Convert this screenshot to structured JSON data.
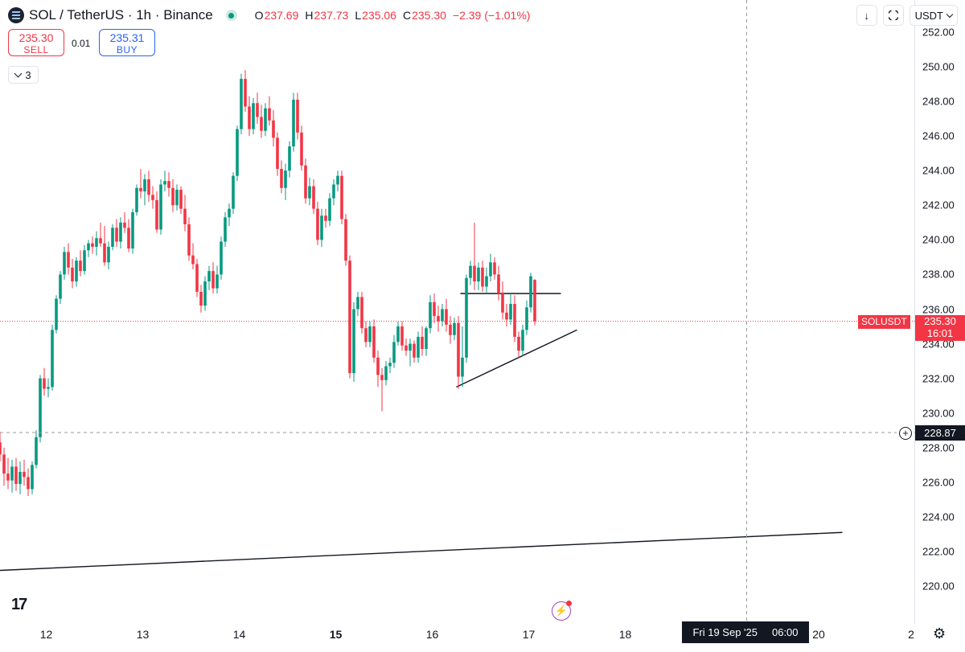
{
  "header": {
    "symbol_title": "SOL / TetherUS · 1h · Binance",
    "ohlc": [
      {
        "key": "O",
        "value": "237.69"
      },
      {
        "key": "H",
        "value": "237.73"
      },
      {
        "key": "L",
        "value": "235.06"
      },
      {
        "key": "C",
        "value": "235.30"
      }
    ],
    "change": "−2.39 (−1.01%)"
  },
  "trade": {
    "sell_price": "235.30",
    "sell_label": "SELL",
    "spread": "0.01",
    "buy_price": "235.31",
    "buy_label": "BUY"
  },
  "indicators_count": "3",
  "top_right": {
    "download_icon": "↓",
    "currency": "USDT"
  },
  "symbol_label": "SOLUSDT",
  "last_price": "235.30",
  "countdown": "16:01",
  "crosshair_price": "228.87",
  "crosshair_time": {
    "date": "Fri 19 Sep '25",
    "time": "06:00"
  },
  "price_ticks": [
    "252.00",
    "250.00",
    "248.00",
    "246.00",
    "244.00",
    "242.00",
    "240.00",
    "238.00",
    "236.00",
    "234.00",
    "232.00",
    "230.00",
    "228.00",
    "226.00",
    "224.00",
    "222.00",
    "220.00"
  ],
  "time_labels": [
    {
      "label": "12",
      "bold": false
    },
    {
      "label": "13",
      "bold": false
    },
    {
      "label": "14",
      "bold": false
    },
    {
      "label": "15",
      "bold": true
    },
    {
      "label": "16",
      "bold": false
    },
    {
      "label": "17",
      "bold": false
    },
    {
      "label": "18",
      "bold": false
    },
    {
      "label": "20",
      "bold": false
    },
    {
      "label": "2",
      "bold": false
    }
  ],
  "brand_logo": "17",
  "colors": {
    "up": "#089981",
    "down": "#f23645",
    "accent": "#2962ff",
    "text": "#131722"
  },
  "chart_data": {
    "type": "candlestick",
    "symbol": "SOLUSDT",
    "interval": "1h",
    "ylim": [
      219.5,
      252.5
    ],
    "x_range_hours": [
      -12,
      198
    ],
    "last_price": 235.3,
    "crosshair_price": 228.87,
    "candles": [
      [
        228.3,
        228.9,
        227.2,
        227.6
      ],
      [
        227.6,
        228.0,
        225.8,
        226.5
      ],
      [
        226.5,
        227.4,
        225.6,
        226.1
      ],
      [
        226.1,
        227.3,
        225.4,
        226.9
      ],
      [
        226.9,
        227.4,
        225.5,
        225.9
      ],
      [
        225.9,
        227.2,
        225.3,
        226.6
      ],
      [
        226.6,
        227.3,
        225.8,
        226.3
      ],
      [
        226.3,
        226.8,
        225.2,
        225.6
      ],
      [
        225.6,
        227.2,
        225.3,
        227.0
      ],
      [
        227.0,
        229.0,
        226.8,
        228.6
      ],
      [
        228.6,
        232.2,
        228.3,
        232.0
      ],
      [
        232.0,
        232.6,
        231.0,
        231.4
      ],
      [
        231.4,
        232.0,
        230.9,
        231.5
      ],
      [
        231.5,
        235.1,
        231.3,
        234.8
      ],
      [
        234.8,
        236.8,
        234.6,
        236.6
      ],
      [
        236.6,
        238.2,
        236.3,
        238.0
      ],
      [
        238.0,
        239.6,
        237.7,
        239.3
      ],
      [
        239.3,
        239.8,
        238.0,
        238.4
      ],
      [
        238.4,
        238.9,
        237.2,
        237.6
      ],
      [
        237.6,
        239.0,
        237.3,
        238.8
      ],
      [
        238.8,
        239.4,
        237.9,
        238.2
      ],
      [
        238.2,
        239.7,
        238.0,
        239.4
      ],
      [
        239.4,
        240.0,
        239.0,
        239.8
      ],
      [
        239.8,
        240.2,
        239.2,
        239.6
      ],
      [
        239.6,
        240.5,
        239.1,
        240.1
      ],
      [
        240.1,
        241.0,
        239.6,
        239.8
      ],
      [
        239.8,
        240.8,
        238.5,
        238.7
      ],
      [
        238.7,
        239.9,
        238.3,
        239.6
      ],
      [
        239.6,
        240.9,
        239.4,
        240.7
      ],
      [
        240.7,
        241.2,
        239.6,
        239.9
      ],
      [
        239.9,
        241.3,
        239.5,
        241.0
      ],
      [
        241.0,
        241.6,
        240.4,
        240.7
      ],
      [
        240.7,
        241.2,
        239.3,
        239.5
      ],
      [
        239.5,
        241.8,
        239.2,
        241.6
      ],
      [
        241.6,
        243.2,
        241.4,
        243.0
      ],
      [
        243.0,
        244.1,
        242.4,
        242.8
      ],
      [
        242.8,
        243.8,
        242.0,
        243.5
      ],
      [
        243.5,
        244.0,
        242.2,
        242.6
      ],
      [
        242.6,
        243.1,
        241.8,
        242.3
      ],
      [
        242.3,
        242.8,
        240.4,
        240.6
      ],
      [
        240.6,
        243.5,
        240.3,
        243.2
      ],
      [
        243.2,
        244.0,
        242.8,
        243.4
      ],
      [
        243.4,
        243.9,
        242.5,
        243.0
      ],
      [
        243.0,
        243.5,
        241.6,
        242.0
      ],
      [
        242.0,
        243.2,
        241.7,
        242.9
      ],
      [
        242.9,
        243.1,
        241.5,
        241.8
      ],
      [
        241.8,
        242.6,
        240.5,
        240.9
      ],
      [
        240.9,
        241.3,
        238.8,
        239.1
      ],
      [
        239.1,
        239.8,
        238.3,
        238.6
      ],
      [
        238.6,
        238.9,
        236.7,
        237.0
      ],
      [
        237.0,
        237.4,
        235.8,
        236.2
      ],
      [
        236.2,
        237.9,
        235.9,
        237.6
      ],
      [
        237.6,
        238.5,
        237.1,
        238.2
      ],
      [
        238.2,
        238.7,
        236.9,
        237.2
      ],
      [
        237.2,
        238.5,
        236.9,
        238.0
      ],
      [
        238.0,
        240.2,
        237.7,
        239.9
      ],
      [
        239.9,
        241.6,
        239.6,
        241.3
      ],
      [
        241.3,
        242.1,
        240.8,
        241.8
      ],
      [
        241.8,
        243.9,
        241.5,
        243.7
      ],
      [
        243.7,
        246.6,
        243.4,
        246.4
      ],
      [
        246.4,
        249.6,
        246.1,
        249.3
      ],
      [
        249.3,
        249.8,
        247.4,
        247.7
      ],
      [
        247.7,
        248.3,
        246.0,
        246.4
      ],
      [
        246.4,
        248.2,
        246.1,
        247.9
      ],
      [
        247.9,
        248.5,
        246.7,
        247.1
      ],
      [
        247.1,
        247.8,
        245.9,
        246.3
      ],
      [
        246.3,
        247.9,
        246.0,
        247.6
      ],
      [
        247.6,
        248.3,
        246.6,
        246.9
      ],
      [
        246.9,
        247.5,
        245.4,
        245.9
      ],
      [
        245.9,
        246.2,
        243.7,
        244.1
      ],
      [
        244.1,
        244.6,
        242.7,
        243.0
      ],
      [
        243.0,
        244.4,
        242.3,
        244.0
      ],
      [
        244.0,
        245.7,
        243.6,
        245.4
      ],
      [
        245.4,
        248.5,
        245.1,
        248.1
      ],
      [
        248.1,
        248.5,
        245.8,
        246.2
      ],
      [
        246.2,
        246.6,
        244.0,
        244.3
      ],
      [
        244.3,
        244.7,
        242.1,
        242.4
      ],
      [
        242.4,
        243.6,
        242.0,
        243.1
      ],
      [
        243.1,
        243.5,
        241.5,
        241.8
      ],
      [
        241.8,
        242.2,
        239.7,
        240.0
      ],
      [
        240.0,
        241.8,
        239.6,
        241.4
      ],
      [
        241.4,
        241.8,
        240.7,
        241.1
      ],
      [
        241.1,
        242.7,
        240.8,
        242.4
      ],
      [
        242.4,
        243.5,
        242.0,
        243.2
      ],
      [
        243.2,
        244.0,
        242.8,
        243.7
      ],
      [
        243.7,
        244.0,
        240.9,
        241.2
      ],
      [
        241.2,
        241.5,
        238.5,
        238.8
      ],
      [
        238.8,
        239.1,
        232.0,
        232.3
      ],
      [
        232.3,
        236.4,
        231.8,
        236.0
      ],
      [
        236.0,
        237.0,
        235.6,
        236.7
      ],
      [
        236.7,
        237.0,
        234.6,
        234.9
      ],
      [
        234.9,
        235.3,
        233.8,
        234.1
      ],
      [
        234.1,
        235.3,
        233.8,
        235.0
      ],
      [
        235.0,
        235.4,
        232.9,
        233.2
      ],
      [
        233.2,
        233.6,
        231.5,
        232.2
      ],
      [
        232.2,
        232.6,
        230.1,
        231.9
      ],
      [
        231.9,
        233.0,
        231.6,
        232.7
      ],
      [
        232.7,
        233.2,
        232.3,
        232.9
      ],
      [
        232.9,
        234.5,
        232.6,
        234.1
      ],
      [
        234.1,
        235.3,
        233.9,
        235.0
      ],
      [
        235.0,
        235.3,
        233.6,
        233.9
      ],
      [
        233.9,
        234.3,
        233.3,
        233.6
      ],
      [
        233.6,
        234.3,
        232.7,
        234.0
      ],
      [
        234.0,
        234.2,
        232.9,
        233.2
      ],
      [
        233.2,
        234.7,
        232.9,
        234.4
      ],
      [
        234.4,
        235.0,
        233.3,
        233.7
      ],
      [
        233.7,
        235.0,
        233.3,
        234.9
      ],
      [
        234.9,
        236.8,
        234.6,
        236.4
      ],
      [
        236.4,
        236.9,
        235.2,
        235.6
      ],
      [
        235.6,
        236.2,
        234.7,
        235.3
      ],
      [
        235.3,
        236.3,
        235.0,
        236.0
      ],
      [
        236.0,
        236.6,
        234.7,
        235.1
      ],
      [
        235.1,
        235.6,
        234.0,
        234.5
      ],
      [
        234.5,
        235.5,
        234.2,
        235.2
      ],
      [
        235.2,
        235.6,
        231.4,
        232.1
      ],
      [
        232.1,
        235.0,
        231.5,
        233.2
      ],
      [
        233.2,
        238.0,
        232.9,
        237.8
      ],
      [
        237.8,
        238.8,
        237.4,
        238.5
      ],
      [
        238.5,
        241.0,
        237.1,
        237.6
      ],
      [
        237.6,
        238.7,
        237.1,
        238.4
      ],
      [
        238.4,
        238.8,
        237.0,
        237.3
      ],
      [
        237.3,
        238.4,
        236.9,
        237.9
      ],
      [
        237.9,
        239.2,
        237.6,
        238.7
      ],
      [
        238.7,
        239.0,
        237.7,
        238.0
      ],
      [
        238.0,
        238.5,
        236.5,
        236.9
      ],
      [
        236.9,
        237.6,
        235.4,
        235.8
      ],
      [
        235.8,
        236.3,
        235.0,
        235.4
      ],
      [
        235.4,
        236.9,
        235.1,
        236.3
      ],
      [
        236.3,
        236.8,
        234.1,
        234.4
      ],
      [
        234.4,
        234.7,
        233.2,
        233.6
      ],
      [
        233.6,
        235.1,
        233.3,
        234.8
      ],
      [
        234.8,
        236.5,
        234.5,
        236.1
      ],
      [
        236.1,
        238.1,
        235.8,
        237.9
      ],
      [
        237.69,
        237.73,
        235.06,
        235.3
      ]
    ],
    "trendlines": [
      {
        "from": [
          103,
          236.9
        ],
        "to": [
          128,
          236.9
        ]
      },
      {
        "from": [
          102,
          231.5
        ],
        "to": [
          132,
          234.8
        ]
      },
      {
        "from": [
          -12,
          220.9
        ],
        "to": [
          198,
          223.1
        ]
      }
    ]
  }
}
